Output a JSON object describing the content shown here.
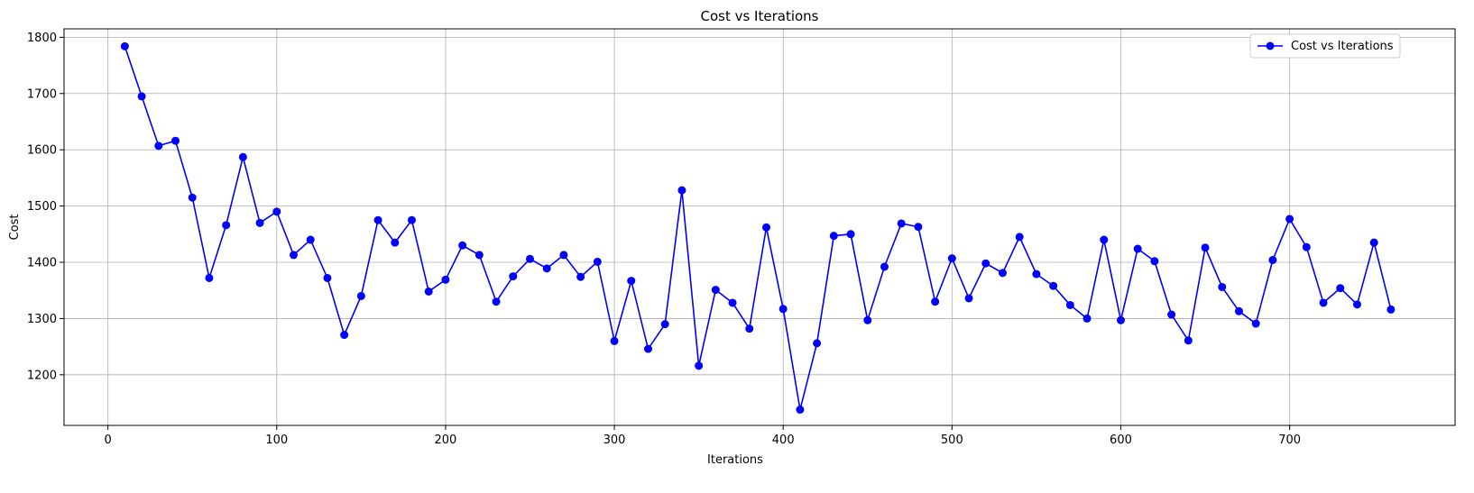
{
  "chart_data": {
    "type": "line",
    "title": "Cost vs Iterations",
    "xlabel": "Iterations",
    "ylabel": "Cost",
    "xlim": [
      -26,
      798
    ],
    "ylim": [
      1110,
      1815
    ],
    "xticks": [
      0,
      100,
      200,
      300,
      400,
      500,
      600,
      700
    ],
    "yticks": [
      1200,
      1300,
      1400,
      1500,
      1600,
      1700,
      1800
    ],
    "grid": true,
    "legend_position": "top-right",
    "series": [
      {
        "name": "Cost vs Iterations",
        "color": "#0000ff",
        "marker": "circle",
        "x": [
          10,
          20,
          30,
          40,
          50,
          60,
          70,
          80,
          90,
          100,
          110,
          120,
          130,
          140,
          150,
          160,
          170,
          180,
          190,
          200,
          210,
          220,
          230,
          240,
          250,
          260,
          270,
          280,
          290,
          300,
          310,
          320,
          330,
          340,
          350,
          360,
          370,
          380,
          390,
          400,
          410,
          420,
          430,
          440,
          450,
          460,
          470,
          480,
          490,
          500,
          510,
          520,
          530,
          540,
          550,
          560,
          570,
          580,
          590,
          600,
          610,
          620,
          630,
          640,
          650,
          660,
          670,
          680,
          690,
          700,
          710,
          720,
          730,
          740,
          750,
          760
        ],
        "y": [
          1784,
          1695,
          1607,
          1616,
          1515,
          1372,
          1466,
          1587,
          1470,
          1490,
          1413,
          1440,
          1372,
          1271,
          1340,
          1475,
          1435,
          1475,
          1348,
          1369,
          1430,
          1413,
          1330,
          1375,
          1406,
          1389,
          1413,
          1374,
          1401,
          1260,
          1367,
          1246,
          1290,
          1528,
          1216,
          1351,
          1328,
          1282,
          1462,
          1317,
          1138,
          1256,
          1447,
          1450,
          1297,
          1392,
          1469,
          1463,
          1330,
          1407,
          1336,
          1398,
          1381,
          1445,
          1379,
          1358,
          1324,
          1300,
          1440,
          1297,
          1424,
          1402,
          1307,
          1261,
          1426,
          1356,
          1313,
          1291,
          1404,
          1477,
          1427,
          1328,
          1354,
          1325,
          1435,
          1316
        ]
      }
    ]
  }
}
